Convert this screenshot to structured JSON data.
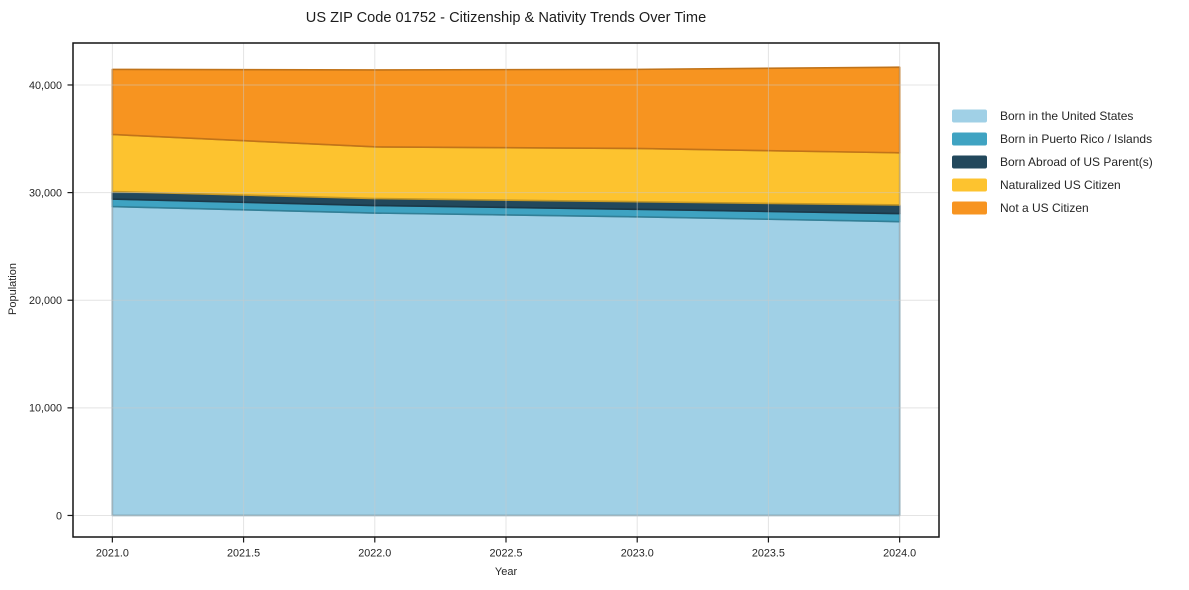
{
  "chart_data": {
    "type": "area",
    "stacked": true,
    "title": "US ZIP Code 01752 - Citizenship & Nativity Trends Over Time",
    "xlabel": "Year",
    "ylabel": "Population",
    "x": [
      2021,
      2022,
      2023,
      2024
    ],
    "series": [
      {
        "name": "Born in the United States",
        "color": "#a0d0e6",
        "values": [
          28700,
          28100,
          27750,
          27300
        ]
      },
      {
        "name": "Born in Puerto Rico / Islands",
        "color": "#3fa3c2",
        "values": [
          700,
          700,
          700,
          750
        ]
      },
      {
        "name": "Born Abroad of US Parent(s)",
        "color": "#22485c",
        "values": [
          700,
          650,
          700,
          800
        ]
      },
      {
        "name": "Naturalized US Citizen",
        "color": "#fdc32f",
        "values": [
          5300,
          4800,
          4950,
          4850
        ]
      },
      {
        "name": "Not a US Citizen",
        "color": "#f79420",
        "values": [
          6050,
          7150,
          7350,
          7950
        ]
      }
    ],
    "totals": [
      41450,
      41400,
      41450,
      41650
    ],
    "xlim": [
      2020.85,
      2024.15
    ],
    "ylim": [
      -2000,
      43900
    ],
    "xticks": [
      {
        "v": 2021.0,
        "label": "2021.0"
      },
      {
        "v": 2021.5,
        "label": "2021.5"
      },
      {
        "v": 2022.0,
        "label": "2022.0"
      },
      {
        "v": 2022.5,
        "label": "2022.5"
      },
      {
        "v": 2023.0,
        "label": "2023.0"
      },
      {
        "v": 2023.5,
        "label": "2023.5"
      },
      {
        "v": 2024.0,
        "label": "2024.0"
      }
    ],
    "yticks": [
      {
        "v": 0,
        "label": "0"
      },
      {
        "v": 10000,
        "label": "10,000"
      },
      {
        "v": 20000,
        "label": "20,000"
      },
      {
        "v": 30000,
        "label": "30,000"
      },
      {
        "v": 40000,
        "label": "40,000"
      }
    ],
    "grid": true,
    "legend_position": "right"
  }
}
